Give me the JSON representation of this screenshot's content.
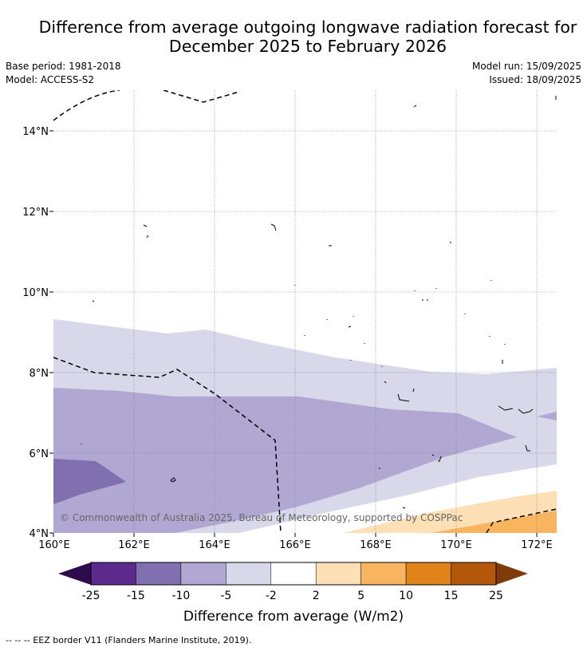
{
  "title": {
    "line1": "Difference from average outgoing longwave radiation forecast for",
    "line2": "December 2025 to February 2026"
  },
  "meta": {
    "base_period": "Base period: 1981-2018",
    "model": "Model: ACCESS-S2",
    "model_run": "Model run: 15/09/2025",
    "issued": "Issued: 18/09/2025"
  },
  "map": {
    "lon_labels": [
      "160°E",
      "162°E",
      "164°E",
      "166°E",
      "168°E",
      "170°E",
      "172°E"
    ],
    "lat_labels": [
      "4°N",
      "6°N",
      "8°N",
      "10°N",
      "12°N",
      "14°N"
    ],
    "lon_range": [
      160,
      172.5
    ],
    "lat_range": [
      4,
      15.1
    ],
    "copyright": "© Commonwealth of Australia 2025, Bureau of Meteorology, supported by COSPPac"
  },
  "colorbar": {
    "tick_labels": [
      "-25",
      "-15",
      "-10",
      "-5",
      "-2",
      "2",
      "5",
      "10",
      "15",
      "25"
    ],
    "colors": [
      "#5b2a8c",
      "#8070b0",
      "#b0a8d2",
      "#d8d8ea",
      "#ffffff",
      "#fde0b6",
      "#f8b45e",
      "#e08318",
      "#b3580b"
    ],
    "under_color": "#2e0a4e",
    "over_color": "#7f3b08",
    "label": "Difference from average (W/m2)"
  },
  "footer": {
    "legend_symbol": "--  --  --",
    "text": "EEZ border V11 (Flanders Marine Institute, 2019)."
  }
}
